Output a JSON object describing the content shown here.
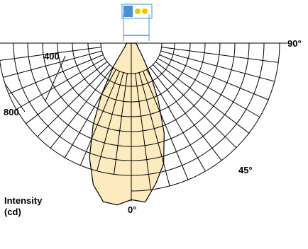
{
  "chart_data": {
    "type": "polar-photometric",
    "angle_labels": [
      "0°",
      "45°",
      "90°"
    ],
    "radial_tick_labels": [
      "400",
      "800"
    ],
    "radial_ticks_cd": [
      400,
      800
    ],
    "angle_range_deg": [
      0,
      90
    ],
    "angle_step_deg": 7.5,
    "rings_cd": [
      0,
      100,
      200,
      300,
      400,
      500,
      600,
      700,
      800,
      900,
      1000
    ],
    "ylabel": "Intensity",
    "yunit": "(cd)",
    "series": [
      {
        "fill_color": "#fdebbf",
        "points": [
          {
            "angle_deg": 0,
            "intensity_cd": 1080
          },
          {
            "angle_deg": 5,
            "intensity_cd": 1100
          },
          {
            "angle_deg": 10,
            "intensity_cd": 980
          },
          {
            "angle_deg": 15,
            "intensity_cd": 860
          },
          {
            "angle_deg": 20,
            "intensity_cd": 660
          },
          {
            "angle_deg": 25,
            "intensity_cd": 440
          },
          {
            "angle_deg": 30,
            "intensity_cd": 280
          },
          {
            "angle_deg": 35,
            "intensity_cd": 170
          },
          {
            "angle_deg": 45,
            "intensity_cd": 90
          },
          {
            "angle_deg": 60,
            "intensity_cd": 50
          },
          {
            "angle_deg": 75,
            "intensity_cd": 40
          },
          {
            "angle_deg": 90,
            "intensity_cd": 30
          },
          {
            "angle_deg": -90,
            "intensity_cd": 30
          },
          {
            "angle_deg": -75,
            "intensity_cd": 40
          },
          {
            "angle_deg": -60,
            "intensity_cd": 50
          },
          {
            "angle_deg": -45,
            "intensity_cd": 100
          },
          {
            "angle_deg": -37.5,
            "intensity_cd": 200
          },
          {
            "angle_deg": -30,
            "intensity_cd": 410
          },
          {
            "angle_deg": -25,
            "intensity_cd": 620
          },
          {
            "angle_deg": -20,
            "intensity_cd": 840
          },
          {
            "angle_deg": -15,
            "intensity_cd": 1010
          },
          {
            "angle_deg": -10,
            "intensity_cd": 1110
          },
          {
            "angle_deg": -5,
            "intensity_cd": 1120
          }
        ]
      }
    ],
    "fixture_icon": {
      "name": "luminaire-icon",
      "body_color": "#4a90d2",
      "lamp_color": "#f7c300"
    },
    "colors": {
      "grid": "#000000",
      "distribution_fill": "#fdebbf",
      "distribution_stroke": "#000000"
    }
  }
}
